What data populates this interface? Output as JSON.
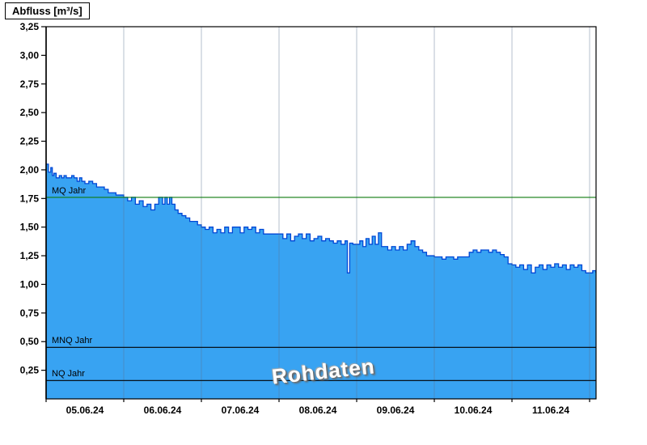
{
  "title": "Abfluss [m³/s]",
  "watermark": "Rohdaten",
  "chart_data": {
    "type": "area",
    "title": "Abfluss [m³/s]",
    "xlabel": "",
    "ylabel": "Abfluss [m³/s]",
    "ylim": [
      0,
      3.25
    ],
    "x_span": 7.083,
    "x_unit": "days since 05.06.24 00:00",
    "grid": "vertical-daily",
    "x_labels": [
      "05.06.24",
      "06.06.24",
      "07.06.24",
      "08.06.24",
      "09.06.24",
      "10.06.24",
      "11.06.24"
    ],
    "y_ticks": [
      {
        "value": 0.25,
        "label": "0,25"
      },
      {
        "value": 0.5,
        "label": "0,50"
      },
      {
        "value": 0.75,
        "label": "0,75"
      },
      {
        "value": 1.0,
        "label": "1,00"
      },
      {
        "value": 1.25,
        "label": "1,25"
      },
      {
        "value": 1.5,
        "label": "1,50"
      },
      {
        "value": 1.75,
        "label": "1,75"
      },
      {
        "value": 2.0,
        "label": "2,00"
      },
      {
        "value": 2.25,
        "label": "2,25"
      },
      {
        "value": 2.5,
        "label": "2,50"
      },
      {
        "value": 2.75,
        "label": "2,75"
      },
      {
        "value": 3.0,
        "label": "3,00"
      },
      {
        "value": 3.25,
        "label": "3,25"
      }
    ],
    "reference_lines": [
      {
        "label": "MQ Jahr",
        "value": 1.76,
        "color": "#0e7a0e"
      },
      {
        "label": "MNQ Jahr",
        "value": 0.45,
        "color": "#000000"
      },
      {
        "label": "NQ Jahr",
        "value": 0.16,
        "color": "#000000"
      }
    ],
    "colors": {
      "area_fill": "#38a3f2",
      "area_stroke": "#0047d6",
      "grid": "#5c7390",
      "axis": "#000000",
      "background": "#ffffff"
    },
    "x": [
      0.0,
      0.03,
      0.06,
      0.08,
      0.1,
      0.13,
      0.17,
      0.2,
      0.23,
      0.26,
      0.3,
      0.33,
      0.36,
      0.4,
      0.43,
      0.46,
      0.5,
      0.55,
      0.6,
      0.65,
      0.7,
      0.75,
      0.8,
      0.85,
      0.9,
      0.95,
      1.0,
      1.05,
      1.1,
      1.15,
      1.2,
      1.25,
      1.3,
      1.35,
      1.4,
      1.45,
      1.5,
      1.53,
      1.56,
      1.59,
      1.62,
      1.66,
      1.7,
      1.75,
      1.8,
      1.85,
      1.9,
      1.95,
      2.0,
      2.05,
      2.1,
      2.15,
      2.2,
      2.25,
      2.3,
      2.35,
      2.4,
      2.45,
      2.5,
      2.55,
      2.6,
      2.65,
      2.7,
      2.75,
      2.8,
      2.85,
      2.9,
      2.95,
      3.0,
      3.05,
      3.1,
      3.15,
      3.2,
      3.25,
      3.3,
      3.35,
      3.4,
      3.45,
      3.5,
      3.55,
      3.6,
      3.65,
      3.7,
      3.75,
      3.8,
      3.85,
      3.88,
      3.91,
      3.95,
      4.0,
      4.04,
      4.08,
      4.12,
      4.16,
      4.2,
      4.24,
      4.28,
      4.32,
      4.36,
      4.4,
      4.45,
      4.5,
      4.55,
      4.6,
      4.65,
      4.7,
      4.75,
      4.8,
      4.85,
      4.9,
      4.95,
      5.0,
      5.05,
      5.1,
      5.15,
      5.2,
      5.25,
      5.3,
      5.35,
      5.4,
      5.45,
      5.5,
      5.55,
      5.6,
      5.65,
      5.7,
      5.75,
      5.8,
      5.85,
      5.9,
      5.95,
      6.0,
      6.05,
      6.1,
      6.15,
      6.2,
      6.25,
      6.3,
      6.35,
      6.4,
      6.45,
      6.5,
      6.55,
      6.6,
      6.65,
      6.7,
      6.75,
      6.8,
      6.85,
      6.9,
      6.95,
      7.0,
      7.04,
      7.08
    ],
    "values": [
      2.05,
      1.98,
      2.02,
      1.95,
      1.97,
      1.93,
      1.95,
      1.93,
      1.95,
      1.93,
      1.93,
      1.95,
      1.93,
      1.9,
      1.93,
      1.9,
      1.88,
      1.9,
      1.88,
      1.85,
      1.85,
      1.83,
      1.8,
      1.8,
      1.78,
      1.78,
      1.76,
      1.73,
      1.76,
      1.7,
      1.73,
      1.68,
      1.7,
      1.65,
      1.7,
      1.76,
      1.7,
      1.76,
      1.7,
      1.76,
      1.7,
      1.65,
      1.62,
      1.6,
      1.58,
      1.55,
      1.55,
      1.52,
      1.5,
      1.48,
      1.5,
      1.45,
      1.48,
      1.45,
      1.5,
      1.45,
      1.5,
      1.5,
      1.45,
      1.5,
      1.48,
      1.5,
      1.45,
      1.48,
      1.44,
      1.44,
      1.44,
      1.44,
      1.44,
      1.4,
      1.44,
      1.38,
      1.42,
      1.44,
      1.4,
      1.44,
      1.38,
      1.4,
      1.42,
      1.38,
      1.4,
      1.38,
      1.36,
      1.38,
      1.35,
      1.38,
      1.1,
      1.36,
      1.35,
      1.35,
      1.38,
      1.33,
      1.4,
      1.35,
      1.42,
      1.35,
      1.45,
      1.33,
      1.33,
      1.3,
      1.33,
      1.3,
      1.33,
      1.3,
      1.35,
      1.38,
      1.33,
      1.3,
      1.28,
      1.25,
      1.25,
      1.24,
      1.24,
      1.22,
      1.24,
      1.24,
      1.22,
      1.24,
      1.24,
      1.24,
      1.28,
      1.3,
      1.28,
      1.3,
      1.3,
      1.28,
      1.3,
      1.28,
      1.26,
      1.24,
      1.18,
      1.17,
      1.15,
      1.17,
      1.13,
      1.17,
      1.1,
      1.15,
      1.17,
      1.13,
      1.17,
      1.15,
      1.18,
      1.15,
      1.17,
      1.13,
      1.17,
      1.15,
      1.17,
      1.12,
      1.1,
      1.1,
      1.12,
      1.1
    ]
  }
}
